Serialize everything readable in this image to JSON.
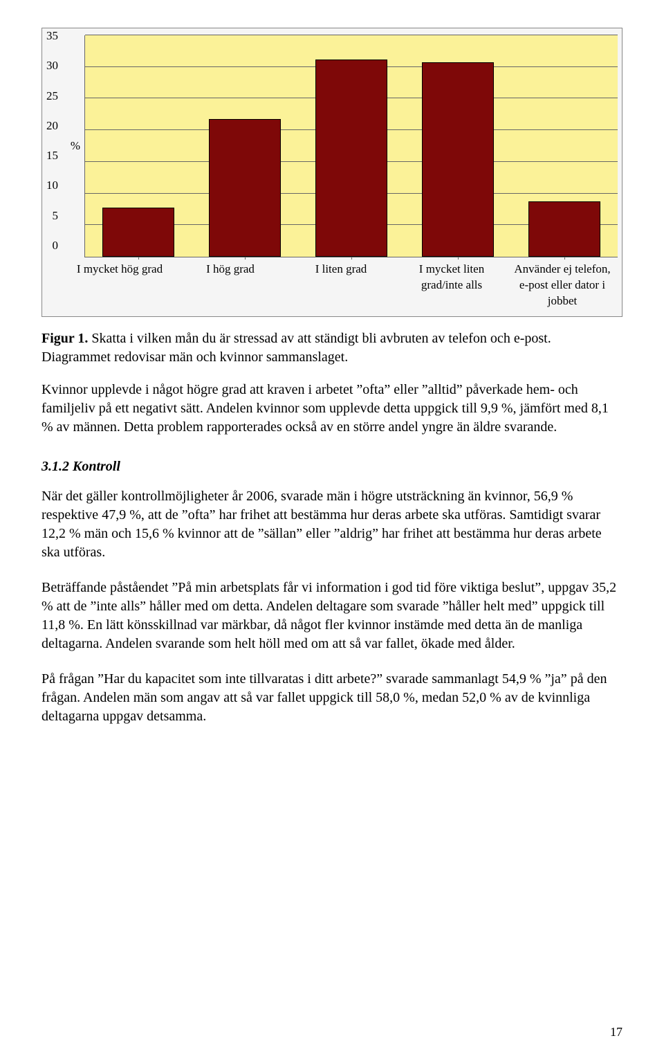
{
  "chart": {
    "type": "bar",
    "y_label": "%",
    "y_max": 35,
    "y_tick_step": 5,
    "y_ticks": [
      "35",
      "30",
      "25",
      "20",
      "15",
      "10",
      "5",
      "0"
    ],
    "bar_color": "#7e0808",
    "bar_border": "#000000",
    "plot_bg": "#fbf298",
    "grid_color": "#666666",
    "categories": [
      "I mycket hög grad",
      "I hög grad",
      "I liten grad",
      "I mycket liten grad/inte alls",
      "Använder ej telefon, e-post eller dator i jobbet"
    ],
    "values": [
      7.5,
      21.5,
      31,
      30.5,
      8.5
    ],
    "label_fontsize": 17
  },
  "fig_caption_label": "Figur 1.",
  "fig_caption_text": " Skatta i vilken mån du är stressad av att ständigt bli avbruten av telefon och e-post. Diagrammet redovisar män och kvinnor sammanslaget.",
  "para1": "Kvinnor upplevde i något högre grad att kraven i arbetet \"ofta\" eller \"alltid\" påverkade hem- och familjeliv på ett negativt sätt. Andelen kvinnor som upplevde detta uppgick till 9,9 %, jämfört med 8,1 % av männen. Detta problem rapporterades också av en större andel yngre än äldre svarande.",
  "section_heading": "3.1.2 Kontroll",
  "para2": "När det gäller kontrollmöjligheter år 2006, svarade män i högre utsträckning än kvinnor, 56,9 % respektive 47,9 %, att de \"ofta\" har frihet att bestämma hur deras arbete ska utföras. Samtidigt svarar 12,2 % män och 15,6 % kvinnor att de \"sällan\" eller \"aldrig\" har frihet att bestämma hur deras arbete ska utföras.",
  "para3": "Beträffande påståendet \"På min arbetsplats får vi information i god tid före viktiga beslut\", uppgav 35,2 % att de \"inte alls\" håller med om detta. Andelen deltagare som svarade \"håller helt med\" uppgick till 11,8 %. En lätt könsskillnad var märkbar, då något fler kvinnor instämde med detta än de manliga deltagarna. Andelen svarande som helt höll med om att så var fallet, ökade med ålder.",
  "para4": "På frågan \"Har du kapacitet som inte tillvaratas i ditt arbete?\" svarade sammanlagt 54,9 % \"ja\" på den frågan. Andelen män som angav att så var fallet uppgick till 58,0 %, medan 52,0 % av de kvinnliga deltagarna uppgav detsamma.",
  "page_number": "17"
}
